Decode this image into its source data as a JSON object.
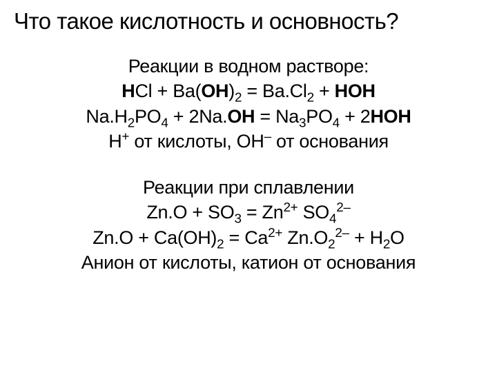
{
  "title": "Что такое кислотность и основность?",
  "section1": {
    "heading": "Реакции в водном растворе:",
    "eq1_pre": "Cl + Ba(",
    "eq1_mid": ")",
    "eq1_post": " = Ba.Cl",
    "eq2_pre": "Na.H",
    "eq2_mid1": "PO",
    "eq2_mid2": " + 2Na.",
    "eq2_mid3": " = Na",
    "eq2_mid4": "PO",
    "eq2_end": " + 2",
    "note_pre": "H",
    "note_mid": " от кислоты, ",
    "note_oh": "OH",
    "note_end": " от основания"
  },
  "section2": {
    "heading": "Реакции при сплавлении",
    "eq3_pre": "Zn.O + SO",
    "eq3_mid": " = Zn",
    "eq3_so": " SO",
    "eq4_pre": "Zn.O + Ca(OH)",
    "eq4_mid": " = Ca",
    "eq4_zno": " Zn.O",
    "eq4_end": " + H",
    "eq4_o": "O",
    "note": "Анион от кислоты, катион от основания"
  },
  "sym": {
    "H": "H",
    "OH": "OH",
    "HOH": "HOH",
    "plus": "+",
    "minus": "–",
    "2": "2",
    "3": "3",
    "4": "4",
    "2plus": "2+",
    "2minus": "2–"
  }
}
